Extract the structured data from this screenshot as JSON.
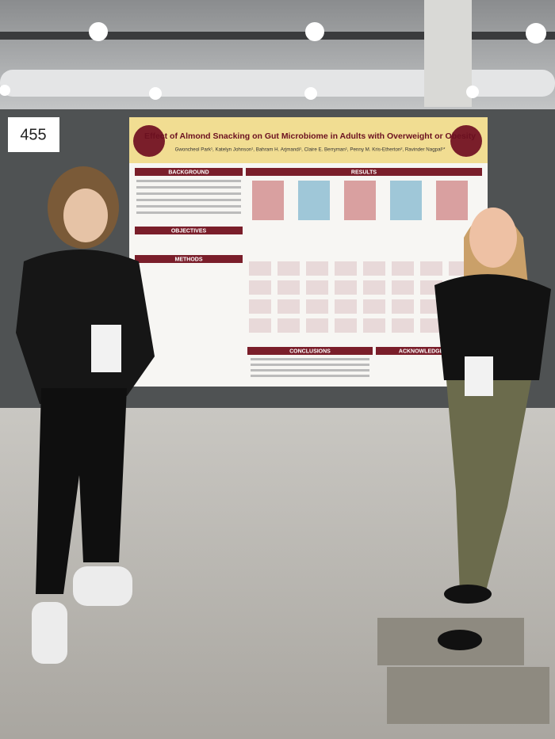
{
  "board_number": "455",
  "poster": {
    "title": "Effect of Almond Snacking on Gut Microbiome in Adults with Overweight or Obesity",
    "authors": "Gwoncheol Park¹, Katelyn Johnson¹, Bahram H. Arjmandi¹, Claire E. Berryman¹, Penny M. Kris-Etherton², Ravinder Nagpal¹*",
    "sections": [
      "BACKGROUND",
      "RESULTS",
      "OBJECTIVES",
      "METHODS",
      "CONCLUSIONS",
      "ACKNOWLEDGEMENT"
    ]
  }
}
